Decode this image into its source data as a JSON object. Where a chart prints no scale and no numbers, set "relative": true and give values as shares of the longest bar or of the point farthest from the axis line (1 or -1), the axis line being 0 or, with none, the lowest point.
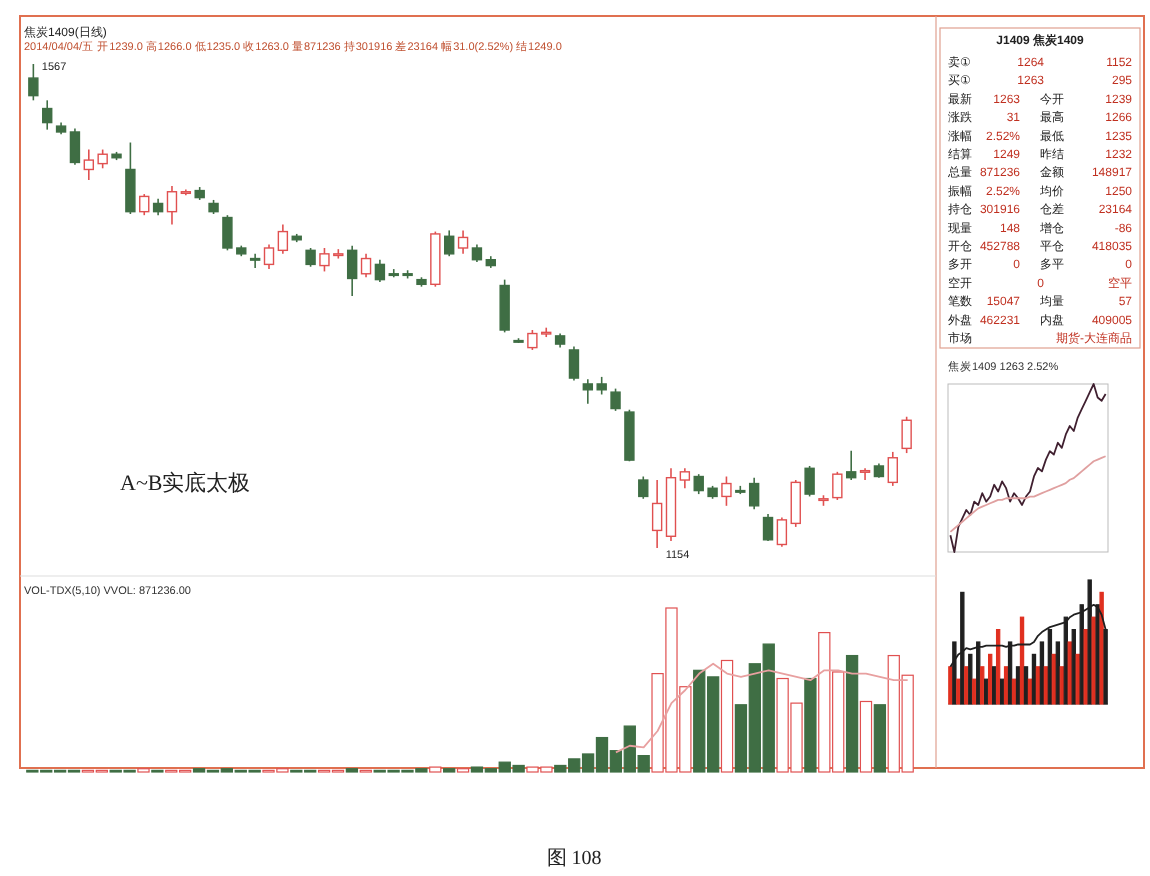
{
  "chart_data": [
    {
      "type": "candlestick",
      "title": "焦炭1409(日线)",
      "subtitle": "2014/04/04/五 开1239.0 高1266.0 低1235.0 收1263.0 量871236 持301916 差23164 幅31.0(2.52%) 结1249.0",
      "categories": [
        null,
        null,
        null,
        null,
        null,
        null,
        null,
        null,
        null,
        null,
        null,
        null,
        null,
        null,
        null,
        null,
        null,
        null,
        null,
        null,
        null,
        null,
        null,
        null,
        null,
        null,
        null,
        null,
        null,
        null,
        null,
        null,
        null,
        null,
        null,
        null,
        null,
        null,
        null,
        null,
        null,
        null,
        null,
        null,
        null,
        null,
        null,
        null,
        null,
        null,
        null,
        null,
        null,
        null,
        null,
        null,
        null,
        null,
        null,
        null,
        null,
        null,
        null,
        null
      ],
      "ohlc": [
        [
          1555,
          1567,
          1536,
          1540
        ],
        [
          1529,
          1536,
          1511,
          1517
        ],
        [
          1514,
          1517,
          1507,
          1509
        ],
        [
          1509,
          1512,
          1481,
          1483
        ],
        [
          1477,
          1494,
          1468,
          1485
        ],
        [
          1482,
          1494,
          1478,
          1490
        ],
        [
          1490,
          1492,
          1485,
          1487
        ],
        [
          1477,
          1500,
          1439,
          1441
        ],
        [
          1441,
          1456,
          1438,
          1454
        ],
        [
          1448,
          1452,
          1438,
          1441
        ],
        [
          1441,
          1463,
          1430,
          1458
        ],
        [
          1457,
          1460,
          1455,
          1458
        ],
        [
          1459,
          1462,
          1451,
          1453
        ],
        [
          1448,
          1451,
          1439,
          1441
        ],
        [
          1436,
          1438,
          1408,
          1410
        ],
        [
          1410,
          1412,
          1403,
          1405
        ],
        [
          1401,
          1405,
          1393,
          1400
        ],
        [
          1396,
          1413,
          1392,
          1410
        ],
        [
          1408,
          1430,
          1405,
          1424
        ],
        [
          1420,
          1422,
          1415,
          1417
        ],
        [
          1408,
          1410,
          1394,
          1396
        ],
        [
          1395,
          1410,
          1390,
          1405
        ],
        [
          1405,
          1409,
          1401,
          1405
        ],
        [
          1408,
          1412,
          1369,
          1384
        ],
        [
          1388,
          1405,
          1385,
          1401
        ],
        [
          1396,
          1400,
          1381,
          1383
        ],
        [
          1388,
          1392,
          1385,
          1387
        ],
        [
          1388,
          1391,
          1384,
          1387
        ],
        [
          1383,
          1385,
          1377,
          1379
        ],
        [
          1379,
          1424,
          1377,
          1422
        ],
        [
          1420,
          1425,
          1403,
          1405
        ],
        [
          1410,
          1425,
          1405,
          1419
        ],
        [
          1410,
          1413,
          1398,
          1400
        ],
        [
          1400,
          1403,
          1393,
          1395
        ],
        [
          1378,
          1383,
          1338,
          1340
        ],
        [
          1331,
          1333,
          1329,
          1330
        ],
        [
          1325,
          1340,
          1323,
          1337
        ],
        [
          1338,
          1342,
          1334,
          1338
        ],
        [
          1335,
          1337,
          1325,
          1328
        ],
        [
          1323,
          1326,
          1297,
          1299
        ],
        [
          1294,
          1298,
          1277,
          1289
        ],
        [
          1294,
          1300,
          1285,
          1289
        ],
        [
          1287,
          1290,
          1271,
          1273
        ],
        [
          1270,
          1272,
          1228,
          1229
        ],
        [
          1212,
          1215,
          1196,
          1198
        ],
        [
          1169,
          1212,
          1154,
          1192
        ],
        [
          1164,
          1222,
          1160,
          1214
        ],
        [
          1212,
          1222,
          1205,
          1219
        ],
        [
          1215,
          1217,
          1200,
          1203
        ],
        [
          1205,
          1207,
          1196,
          1198
        ],
        [
          1198,
          1215,
          1190,
          1209
        ],
        [
          1203,
          1207,
          1200,
          1202
        ],
        [
          1209,
          1214,
          1187,
          1190
        ],
        [
          1180,
          1183,
          1160,
          1161
        ],
        [
          1157,
          1180,
          1155,
          1178
        ],
        [
          1175,
          1212,
          1172,
          1210
        ],
        [
          1222,
          1224,
          1198,
          1200
        ],
        [
          1195,
          1199,
          1190,
          1196
        ],
        [
          1197,
          1219,
          1195,
          1217
        ],
        [
          1219,
          1237,
          1212,
          1214
        ],
        [
          1219,
          1222,
          1212,
          1220
        ],
        [
          1224,
          1226,
          1214,
          1215
        ],
        [
          1210,
          1236,
          1207,
          1231
        ],
        [
          1239,
          1266,
          1235,
          1263
        ]
      ],
      "colors": [
        "#3f6e44",
        "#3f6e44",
        "#3f6e44",
        "#3f6e44",
        "#e05050",
        "#e05050",
        "#3f6e44",
        "#3f6e44",
        "#e05050",
        "#3f6e44",
        "#e05050",
        "#e05050",
        "#3f6e44",
        "#3f6e44",
        "#3f6e44",
        "#3f6e44",
        "#3f6e44",
        "#e05050",
        "#e05050",
        "#3f6e44",
        "#3f6e44",
        "#e05050",
        "#e05050",
        "#3f6e44",
        "#e05050",
        "#3f6e44",
        "#3f6e44",
        "#3f6e44",
        "#3f6e44",
        "#e05050",
        "#3f6e44",
        "#e05050",
        "#3f6e44",
        "#3f6e44",
        "#3f6e44",
        "#3f6e44",
        "#e05050",
        "#e05050",
        "#3f6e44",
        "#3f6e44",
        "#3f6e44",
        "#3f6e44",
        "#3f6e44",
        "#3f6e44",
        "#3f6e44",
        "#e05050",
        "#e05050",
        "#e05050",
        "#3f6e44",
        "#3f6e44",
        "#e05050",
        "#3f6e44",
        "#3f6e44",
        "#3f6e44",
        "#e05050",
        "#e05050",
        "#3f6e44",
        "#e05050",
        "#e05050",
        "#3f6e44",
        "#e05050",
        "#3f6e44",
        "#e05050",
        "#e05050"
      ],
      "annotations": [
        "A~B实底太极",
        "1567",
        "1154",
        "图 108"
      ]
    },
    {
      "type": "bar",
      "title": "VOL-TDX(5,10) VVOL: 871236.00",
      "relative": true,
      "categories": [
        null,
        null,
        null,
        null,
        null,
        null,
        null,
        null,
        null,
        null,
        null,
        null,
        null,
        null,
        null,
        null,
        null,
        null,
        null,
        null,
        null,
        null,
        null,
        null,
        null,
        null,
        null,
        null,
        null,
        null,
        null,
        null,
        null,
        null,
        null,
        null,
        null,
        null,
        null,
        null,
        null,
        null,
        null,
        null,
        null,
        null,
        null,
        null,
        null,
        null,
        null,
        null,
        null,
        null,
        null,
        null,
        null,
        null,
        null,
        null,
        null,
        null,
        null,
        null
      ],
      "series": [
        {
          "type": "bar",
          "colors": [
            "#3f6e44",
            "#3f6e44",
            "#3f6e44",
            "#3f6e44",
            "#e05050",
            "#e05050",
            "#3f6e44",
            "#3f6e44",
            "#e05050",
            "#3f6e44",
            "#e05050",
            "#e05050",
            "#3f6e44",
            "#3f6e44",
            "#3f6e44",
            "#3f6e44",
            "#3f6e44",
            "#e05050",
            "#e05050",
            "#3f6e44",
            "#3f6e44",
            "#e05050",
            "#e05050",
            "#3f6e44",
            "#e05050",
            "#3f6e44",
            "#3f6e44",
            "#3f6e44",
            "#3f6e44",
            "#e05050",
            "#3f6e44",
            "#e05050",
            "#3f6e44",
            "#3f6e44",
            "#3f6e44",
            "#3f6e44",
            "#e05050",
            "#e05050",
            "#3f6e44",
            "#3f6e44",
            "#3f6e44",
            "#3f6e44",
            "#3f6e44",
            "#3f6e44",
            "#3f6e44",
            "#e05050",
            "#e05050",
            "#e05050",
            "#3f6e44",
            "#3f6e44",
            "#e05050",
            "#3f6e44",
            "#3f6e44",
            "#3f6e44",
            "#e05050",
            "#e05050",
            "#3f6e44",
            "#e05050",
            "#e05050",
            "#3f6e44",
            "#e05050",
            "#3f6e44",
            "#e05050",
            "#e05050"
          ],
          "values": [
            0.01,
            0.01,
            0.01,
            0.01,
            0.01,
            0.01,
            0.01,
            0.01,
            0.02,
            0.01,
            0.01,
            0.01,
            0.02,
            0.01,
            0.02,
            0.01,
            0.01,
            0.01,
            0.02,
            0.01,
            0.01,
            0.01,
            0.01,
            0.02,
            0.01,
            0.01,
            0.01,
            0.01,
            0.02,
            0.03,
            0.02,
            0.02,
            0.03,
            0.02,
            0.06,
            0.04,
            0.03,
            0.03,
            0.04,
            0.08,
            0.11,
            0.21,
            0.13,
            0.28,
            0.1,
            0.6,
            1,
            0.52,
            0.62,
            0.58,
            0.68,
            0.41,
            0.66,
            0.78,
            0.57,
            0.42,
            0.57,
            0.85,
            0.61,
            0.71,
            0.43,
            0.41,
            0.71,
            0.59
          ]
        },
        {
          "type": "line",
          "color": "#e8a0a0",
          "values": [
            null,
            null,
            null,
            null,
            null,
            null,
            null,
            null,
            null,
            null,
            null,
            null,
            null,
            null,
            null,
            null,
            null,
            null,
            null,
            null,
            null,
            null,
            null,
            null,
            null,
            null,
            null,
            null,
            null,
            null,
            null,
            null,
            null,
            null,
            null,
            null,
            null,
            null,
            null,
            null,
            null,
            null,
            0.12,
            0.16,
            0.15,
            0.25,
            0.42,
            0.5,
            0.6,
            0.66,
            0.6,
            0.58,
            0.6,
            0.62,
            0.6,
            0.58,
            0.56,
            0.62,
            0.62,
            0.6,
            0.6,
            0.58,
            0.56,
            0.56
          ]
        }
      ]
    },
    {
      "type": "other",
      "title": "J1409 焦炭1409",
      "annotations": [
        "卖① 1264 1152",
        "买① 1263 295",
        "最新 1263 今开 1239",
        "涨跌 31 最高 1266",
        "涨幅 2.52% 最低 1235",
        "结算 1249 昨结 1232",
        "总量 871236 金额 148917",
        "振幅 2.52% 均价 1250",
        "持仓 301916 仓差 23164",
        "现量 148 增仓 -86",
        "开仓 452788 平仓 418035",
        "多开 0 多平 0",
        "空开 0 空平",
        "笔数 15047 均量 57",
        "外盘 462231 内盘 409005",
        "市场 期货-大连商品"
      ]
    },
    {
      "type": "line",
      "title": "焦炭1409 1263 2.52%",
      "relative": true,
      "categories": [
        null,
        null,
        null,
        null,
        null,
        null,
        null,
        null,
        null,
        null,
        null,
        null,
        null,
        null,
        null,
        null,
        null,
        null,
        null,
        null,
        null,
        null,
        null,
        null,
        null,
        null,
        null,
        null,
        null,
        null,
        null,
        null,
        null,
        null,
        null,
        null,
        null,
        null,
        null,
        null
      ],
      "series": [
        {
          "color": "#402030",
          "values": [
            0.1,
            0,
            0.15,
            0.2,
            0.25,
            0.22,
            0.3,
            0.28,
            0.35,
            0.3,
            0.33,
            0.4,
            0.36,
            0.42,
            0.38,
            0.3,
            0.35,
            0.32,
            0.28,
            0.33,
            0.36,
            0.45,
            0.5,
            0.48,
            0.55,
            0.6,
            0.58,
            0.65,
            0.62,
            0.7,
            0.75,
            0.72,
            0.8,
            0.85,
            0.9,
            0.95,
            1,
            0.92,
            0.9,
            0.94
          ]
        },
        {
          "color": "#e0a0a0",
          "values": [
            0.12,
            0.14,
            0.16,
            0.18,
            0.2,
            0.22,
            0.24,
            0.26,
            0.27,
            0.28,
            0.29,
            0.3,
            0.31,
            0.31,
            0.32,
            0.32,
            0.32,
            0.32,
            0.32,
            0.32,
            0.33,
            0.33,
            0.34,
            0.35,
            0.36,
            0.37,
            0.38,
            0.39,
            0.4,
            0.41,
            0.43,
            0.44,
            0.46,
            0.48,
            0.5,
            0.52,
            0.54,
            0.55,
            0.56,
            0.57
          ]
        }
      ]
    },
    {
      "type": "bar",
      "relative": true,
      "categories": [
        null,
        null,
        null,
        null,
        null,
        null,
        null,
        null,
        null,
        null,
        null,
        null,
        null,
        null,
        null,
        null,
        null,
        null,
        null,
        null,
        null,
        null,
        null,
        null,
        null,
        null,
        null,
        null,
        null,
        null,
        null,
        null,
        null,
        null,
        null,
        null,
        null,
        null,
        null,
        null
      ],
      "series": [
        {
          "type": "bar",
          "colors": [
            "#e03020",
            "#202020",
            "#e03020",
            "#202020",
            "#e03020",
            "#202020",
            "#e03020",
            "#202020",
            "#e03020",
            "#202020",
            "#e03020",
            "#202020",
            "#e03020",
            "#202020",
            "#e03020",
            "#202020",
            "#e03020",
            "#202020",
            "#e03020",
            "#202020",
            "#e03020",
            "#202020",
            "#e03020",
            "#202020",
            "#e03020",
            "#202020",
            "#e03020",
            "#202020",
            "#e03020",
            "#202020",
            "#e03020",
            "#202020",
            "#e03020",
            "#202020",
            "#e03020",
            "#202020",
            "#e03020",
            "#202020",
            "#e03020",
            "#202020"
          ],
          "values": [
            0.3,
            0.5,
            0.2,
            0.9,
            0.3,
            0.4,
            0.2,
            0.5,
            0.3,
            0.2,
            0.4,
            0.3,
            0.6,
            0.2,
            0.3,
            0.5,
            0.2,
            0.3,
            0.7,
            0.3,
            0.2,
            0.4,
            0.3,
            0.5,
            0.3,
            0.6,
            0.4,
            0.5,
            0.3,
            0.7,
            0.5,
            0.6,
            0.4,
            0.8,
            0.6,
            1,
            0.7,
            0.8,
            0.9,
            0.6
          ]
        },
        {
          "type": "line",
          "color": "#202020",
          "values": [
            0.3,
            0.35,
            0.4,
            0.42,
            0.45,
            0.44,
            0.45,
            0.46,
            0.46,
            0.47,
            0.47,
            0.47,
            0.47,
            0.47,
            0.46,
            0.47,
            0.47,
            0.48,
            0.48,
            0.48,
            0.48,
            0.5,
            0.55,
            0.58,
            0.6,
            0.62,
            0.63,
            0.64,
            0.65,
            0.66,
            0.7,
            0.72,
            0.73,
            0.74,
            0.76,
            0.78,
            0.8,
            0.78,
            0.72,
            0.6
          ]
        }
      ]
    }
  ]
}
